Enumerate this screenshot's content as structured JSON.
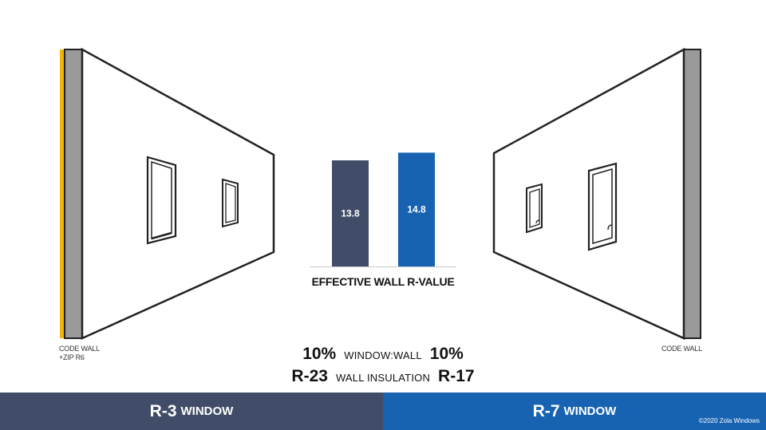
{
  "chart_data": {
    "type": "bar",
    "categories": [
      "R-3 WINDOW",
      "R-7 WINDOW"
    ],
    "values": [
      13.8,
      14.8
    ],
    "data_labels": [
      "13.8",
      "14.8"
    ],
    "title": "EFFECTIVE WALL R-VALUE",
    "colors": [
      "#414d68",
      "#1763b2"
    ]
  },
  "left_wall": {
    "label_line1": "CODE WALL",
    "label_line2": "+ZIP R6",
    "accent_color": "#f2b705"
  },
  "right_wall": {
    "label": "CODE WALL"
  },
  "stats": {
    "ratio_left": "10%",
    "ratio_label": "WINDOW:WALL",
    "ratio_right": "10%",
    "insulation_left": "R-23",
    "insulation_label": "WALL INSULATION",
    "insulation_right": "R-17"
  },
  "footer": {
    "left_value": "R-3",
    "left_label": "WINDOW",
    "right_value": "R-7",
    "right_label": "WINDOW",
    "copyright": "©2020 Zola Windows"
  }
}
